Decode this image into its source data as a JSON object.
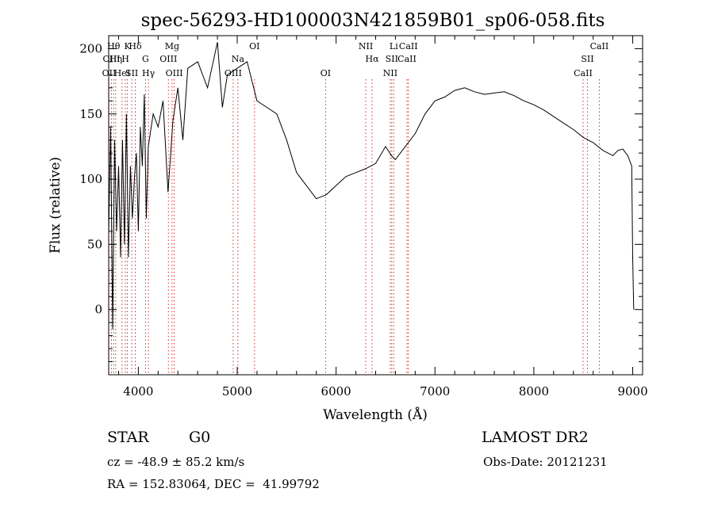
{
  "chart_data": {
    "type": "line",
    "title": "spec-56293-HD100003N421859B01_sp06-058.fits",
    "xlabel": "Wavelength (Å)",
    "ylabel": "Flux (relative)",
    "xlim": [
      3700,
      9100
    ],
    "ylim": [
      -50,
      210
    ],
    "xticks": [
      4000,
      5000,
      6000,
      7000,
      8000,
      9000
    ],
    "yticks": [
      0,
      50,
      100,
      150,
      200
    ],
    "grid": false,
    "line_color": "#000000",
    "marker_color": "#d03030",
    "series": [
      {
        "x": [
          3700,
          3720,
          3740,
          3760,
          3780,
          3800,
          3820,
          3840,
          3860,
          3880,
          3900,
          3920,
          3940,
          3960,
          3980,
          4000,
          4020,
          4040,
          4060,
          4080,
          4100,
          4150,
          4200,
          4250,
          4300,
          4350,
          4400,
          4450,
          4500,
          4600,
          4700,
          4800,
          4850,
          4900,
          5000,
          5100,
          5200,
          5300,
          5400,
          5500,
          5600,
          5700,
          5800,
          5900,
          6000,
          6100,
          6200,
          6300,
          6400,
          6500,
          6560,
          6600,
          6700,
          6800,
          6900,
          7000,
          7100,
          7200,
          7300,
          7400,
          7500,
          7600,
          7700,
          7800,
          7900,
          8000,
          8100,
          8200,
          8300,
          8400,
          8500,
          8600,
          8700,
          8800,
          8850,
          8900,
          8950,
          8990,
          9000,
          9010
        ],
        "y": [
          60,
          140,
          -15,
          130,
          60,
          110,
          40,
          130,
          50,
          150,
          40,
          110,
          70,
          100,
          120,
          60,
          140,
          110,
          165,
          70,
          125,
          150,
          140,
          160,
          90,
          145,
          170,
          130,
          185,
          190,
          170,
          205,
          155,
          180,
          185,
          190,
          160,
          155,
          150,
          130,
          105,
          95,
          85,
          88,
          95,
          102,
          105,
          108,
          112,
          125,
          118,
          115,
          125,
          135,
          150,
          160,
          163,
          168,
          170,
          167,
          165,
          166,
          167,
          164,
          160,
          157,
          153,
          148,
          143,
          138,
          132,
          128,
          122,
          118,
          122,
          123,
          118,
          110,
          40,
          0
        ]
      }
    ],
    "line_markers": [
      {
        "x": 3704,
        "row": 1,
        "label": "OII"
      },
      {
        "x": 3728,
        "row": 2,
        "label": "OIII"
      },
      {
        "x": 3750,
        "row": 3,
        "label": "Hθ"
      },
      {
        "x": 3771,
        "row": 2,
        "label": "Hη"
      },
      {
        "x": 3835,
        "row": 1,
        "label": "HeI"
      },
      {
        "x": 3869,
        "row": 2,
        "label": "H"
      },
      {
        "x": 3889,
        "row": 3,
        "label": "K"
      },
      {
        "x": 3934,
        "row": 1,
        "label": "SII"
      },
      {
        "x": 3969,
        "row": 3,
        "label": "Hδ"
      },
      {
        "x": 4072,
        "row": 2,
        "label": "G"
      },
      {
        "x": 4102,
        "row": 1,
        "label": "Hγ"
      },
      {
        "x": 4304,
        "row": 2,
        "label": "OIII"
      },
      {
        "x": 4341,
        "row": 3,
        "label": "Mg"
      },
      {
        "x": 4363,
        "row": 1,
        "label": "OIII"
      },
      {
        "x": 4959,
        "row": 1,
        "label": "OIII"
      },
      {
        "x": 5007,
        "row": 2,
        "label": "Na"
      },
      {
        "x": 5175,
        "row": 3,
        "label": "OI"
      },
      {
        "x": 5894,
        "row": 1,
        "label": "OI"
      },
      {
        "x": 6300,
        "row": 3,
        "label": "NII"
      },
      {
        "x": 6364,
        "row": 2,
        "label": "Hα"
      },
      {
        "x": 6548,
        "row": 1,
        "label": "NII"
      },
      {
        "x": 6563,
        "row": 2,
        "label": "SII"
      },
      {
        "x": 6583,
        "row": 3,
        "label": "Li"
      },
      {
        "x": 6717,
        "row": 2,
        "label": "CaII"
      },
      {
        "x": 6731,
        "row": 3,
        "label": "CaII"
      },
      {
        "x": 8498,
        "row": 1,
        "label": "CaII"
      },
      {
        "x": 8542,
        "row": 2,
        "label": "SII"
      },
      {
        "x": 8662,
        "row": 3,
        "label": "CaII"
      }
    ]
  },
  "info": {
    "class_label": "STAR",
    "subclass": "G0",
    "survey": "LAMOST DR2",
    "redshift": "cz = -48.9 ± 85.2 km/s",
    "obs_date": "Obs-Date: 20121231",
    "coords": "RA = 152.83064, DEC =  41.99792"
  }
}
